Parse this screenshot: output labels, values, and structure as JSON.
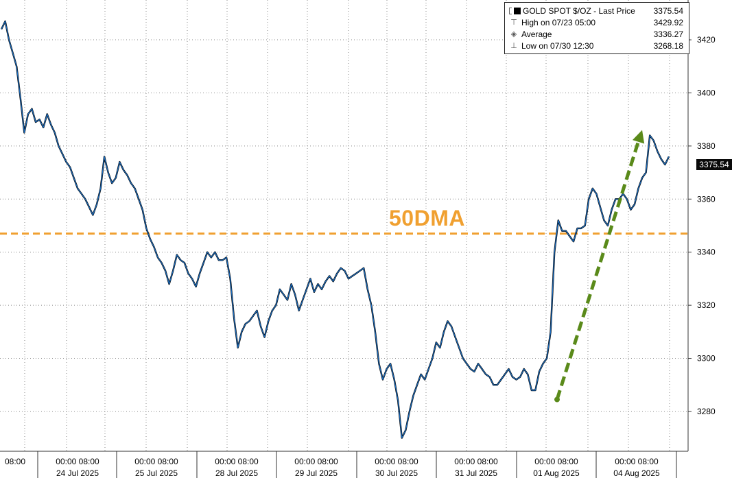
{
  "chart_data": {
    "type": "line",
    "series": [
      {
        "name": "GOLD SPOT $/OZ - Last Price",
        "color": "#1b6ec2",
        "values": [
          3424,
          3427,
          3420,
          3415,
          3410,
          3398,
          3385,
          3392,
          3394,
          3389,
          3390,
          3387,
          3392,
          3388,
          3385,
          3380,
          3377,
          3374,
          3372,
          3368,
          3364,
          3362,
          3360,
          3357,
          3354,
          3358,
          3364,
          3376,
          3370,
          3366,
          3368,
          3374,
          3371,
          3369,
          3366,
          3364,
          3360,
          3356,
          3349,
          3345,
          3342,
          3338,
          3336,
          3333,
          3328,
          3333,
          3339,
          3337,
          3336,
          3332,
          3330,
          3327,
          3332,
          3336,
          3340,
          3338,
          3340,
          3337,
          3337,
          3338,
          3330,
          3315,
          3304,
          3310,
          3313,
          3314,
          3316,
          3318,
          3312,
          3308,
          3314,
          3318,
          3320,
          3326,
          3324,
          3322,
          3328,
          3324,
          3318,
          3322,
          3326,
          3330,
          3325,
          3328,
          3326,
          3329,
          3331,
          3329,
          3332,
          3334,
          3333,
          3330,
          3331,
          3332,
          3333,
          3334,
          3326,
          3320,
          3310,
          3298,
          3292,
          3296,
          3298,
          3292,
          3284,
          3270,
          3273,
          3280,
          3286,
          3290,
          3294,
          3292,
          3296,
          3300,
          3306,
          3304,
          3310,
          3314,
          3312,
          3308,
          3304,
          3300,
          3298,
          3296,
          3295,
          3298,
          3296,
          3294,
          3293,
          3290,
          3290,
          3292,
          3294,
          3296,
          3293,
          3292,
          3293,
          3296,
          3294,
          3288,
          3288,
          3295,
          3298,
          3300,
          3310,
          3340,
          3352,
          3348,
          3348,
          3346,
          3344,
          3349,
          3349,
          3350,
          3360,
          3364,
          3362,
          3357,
          3352,
          3350,
          3356,
          3360,
          3360,
          3362,
          3360,
          3356,
          3358,
          3364,
          3368,
          3370,
          3384,
          3382,
          3378,
          3375,
          3373,
          3376
        ]
      }
    ],
    "ylim": [
      3265,
      3435
    ],
    "yticks": [
      3280,
      3300,
      3320,
      3340,
      3360,
      3380,
      3400,
      3420
    ],
    "grid": true,
    "legend_position": "top-right",
    "legend": {
      "title": "GOLD SPOT $/OZ - Last Price",
      "last": "3375.54",
      "high_label": "High on 07/23 05:00",
      "high": "3429.92",
      "avg_label": "Average",
      "avg": "3336.27",
      "low_label": "Low on 07/30 12:30",
      "low": "3268.18"
    },
    "hline": {
      "value": 3347,
      "label": "50DMA",
      "color": "#f0a030",
      "style": "dashed"
    },
    "arrow": {
      "from": [
        3284.5,
        3284.5
      ],
      "to": [
        3386,
        3386
      ],
      "color": "#5a8a1a",
      "style": "dashed"
    },
    "last_value_label": "3375.54",
    "x_tick_labels": [
      {
        "time": "08:00",
        "date": ""
      },
      {
        "time": "00:00 08:00",
        "date": "24 Jul 2025"
      },
      {
        "time": "00:00 08:00",
        "date": "25 Jul 2025"
      },
      {
        "time": "00:00 08:00",
        "date": "28 Jul 2025"
      },
      {
        "time": "00:00 08:00",
        "date": "29 Jul 2025"
      },
      {
        "time": "00:00 08:00",
        "date": "30 Jul 2025"
      },
      {
        "time": "00:00 08:00",
        "date": "31 Jul 2025"
      },
      {
        "time": "00:00 08:00",
        "date": "01 Aug 2025"
      },
      {
        "time": "00:00 08:00",
        "date": "04 Aug 2025"
      }
    ]
  }
}
